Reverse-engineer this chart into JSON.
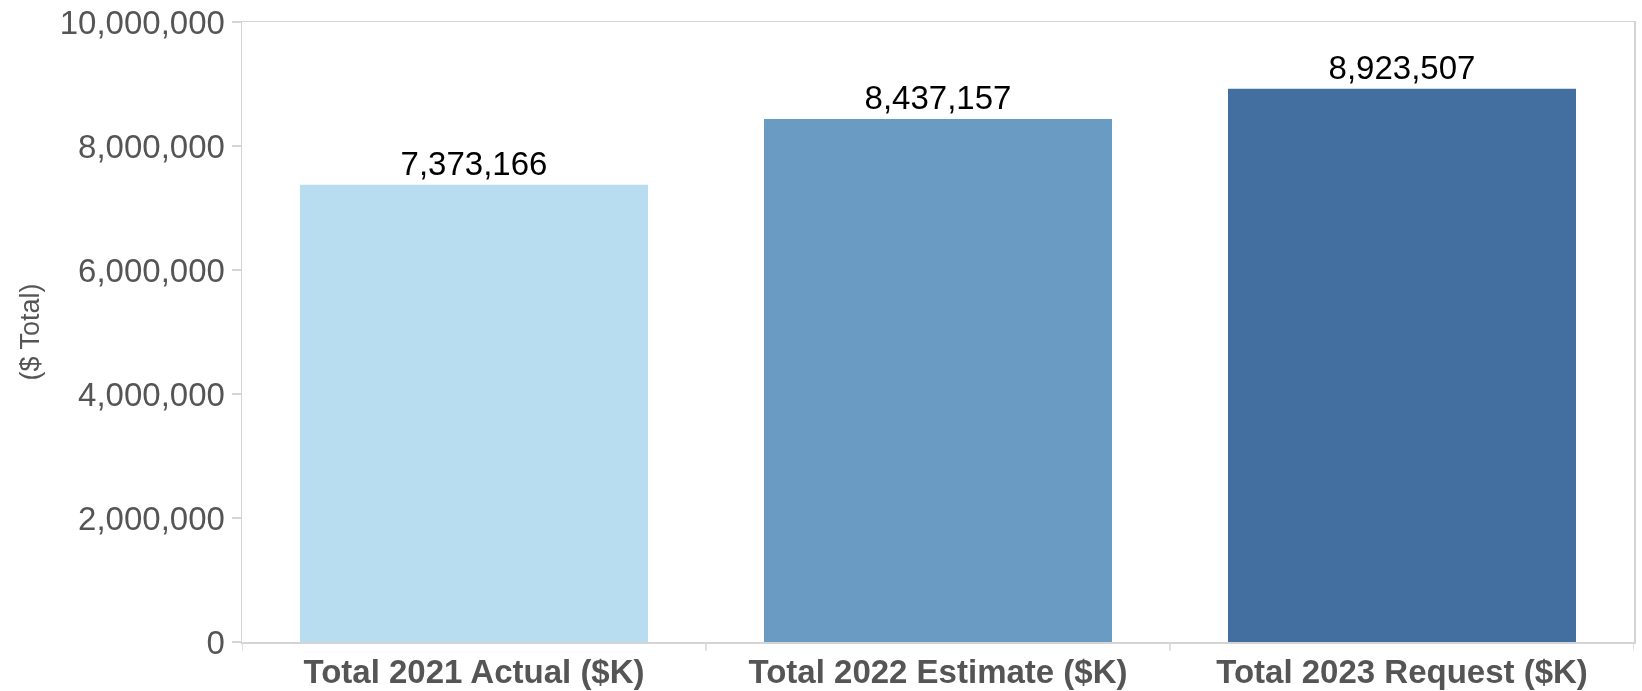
{
  "chart_data": {
    "type": "bar",
    "categories": [
      "Total 2021 Actual ($K)",
      "Total 2022 Estimate ($K)",
      "Total 2023 Request ($K)"
    ],
    "values": [
      7373166,
      8437157,
      8923507
    ],
    "value_labels": [
      "7,373,166",
      "8,437,157",
      "8,923,507"
    ],
    "colors": [
      "#b9ddf0",
      "#6a9bc3",
      "#426f9f"
    ],
    "ylabel": "($ Total)",
    "ylim": [
      0,
      10000000
    ],
    "yticks": [
      0,
      {
        "value": 2000000,
        "label": "2,000,000"
      },
      {
        "value": 4000000,
        "label": "4,000,000"
      },
      {
        "value": 6000000,
        "label": "6,000,000"
      },
      {
        "value": 8000000,
        "label": "8,000,000"
      },
      {
        "value": 10000000,
        "label": "10,000,000"
      }
    ]
  }
}
